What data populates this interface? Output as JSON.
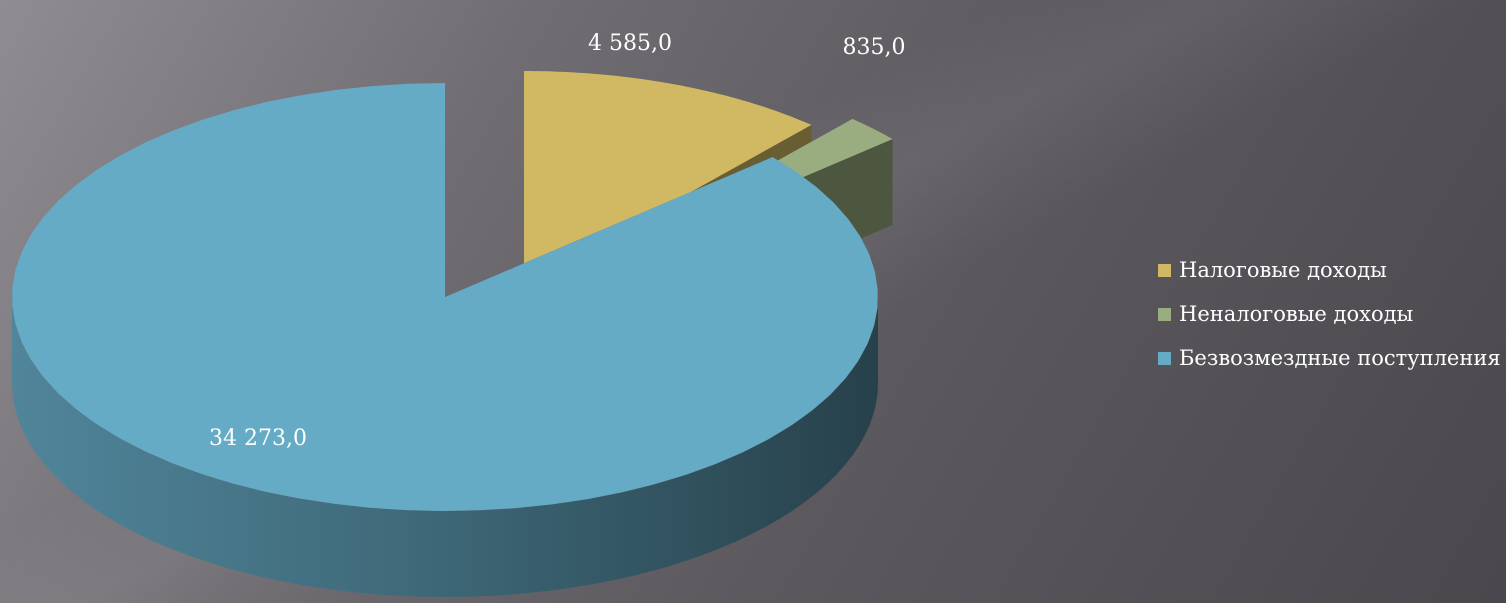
{
  "chart_data": {
    "type": "pie",
    "categories": [
      "Налоговые доходы",
      "Неналоговые доходы",
      "Безвозмездные поступления"
    ],
    "values": [
      4585.0,
      835.0,
      34273.0
    ],
    "labels": [
      "4 585,0",
      "835,0",
      "34 273,0"
    ],
    "colors": [
      "#d1b964",
      "#9aad80",
      "#66abc5"
    ],
    "legend_position": "right",
    "three_d": true,
    "exploded": true
  }
}
